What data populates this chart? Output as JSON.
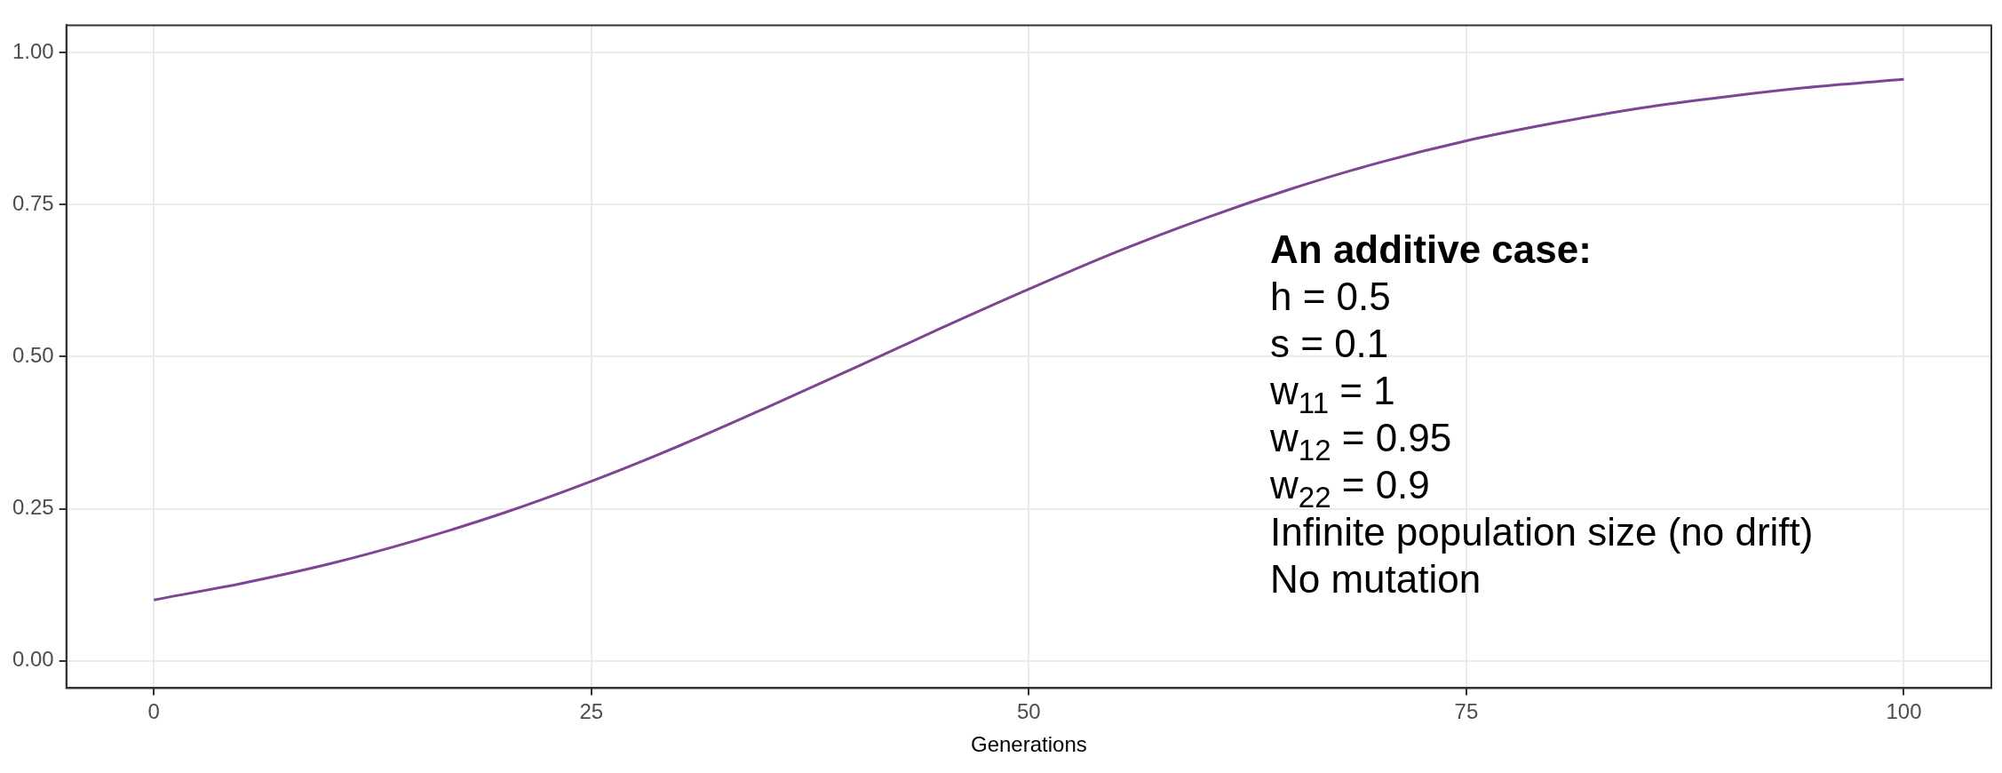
{
  "chart_data": {
    "type": "line",
    "xlabel": "Generations",
    "x": [
      0,
      5,
      10,
      15,
      20,
      25,
      30,
      35,
      40,
      45,
      50,
      55,
      60,
      65,
      70,
      75,
      80,
      85,
      90,
      95,
      100
    ],
    "series": [
      {
        "color": "#7d4592",
        "values": [
          0.1,
          0.127,
          0.159,
          0.198,
          0.243,
          0.295,
          0.353,
          0.416,
          0.481,
          0.547,
          0.611,
          0.672,
          0.727,
          0.776,
          0.819,
          0.855,
          0.884,
          0.909,
          0.928,
          0.944,
          0.956
        ]
      }
    ],
    "xlim": [
      -5,
      105
    ],
    "xticks": [
      0,
      25,
      50,
      75,
      100
    ],
    "ylim": [
      -0.045,
      1.045
    ],
    "yticks": [
      {
        "value": 0,
        "label": "0.00"
      },
      {
        "value": 0.25,
        "label": "0.25"
      },
      {
        "value": 0.5,
        "label": "0.50"
      },
      {
        "value": 0.75,
        "label": "0.75"
      },
      {
        "value": 1,
        "label": "1.00"
      }
    ],
    "grid": true,
    "legend": false,
    "marker": "none",
    "line_style": "solid",
    "annotations": [
      "An additive case:",
      "h = 0.5",
      "s = 0.1",
      "w$_{11}$ = 1",
      "w$_{12}$ = 0.95",
      "w$_{22}$ = 0.9",
      "Infinite population size (no drift)",
      "No mutation"
    ]
  }
}
